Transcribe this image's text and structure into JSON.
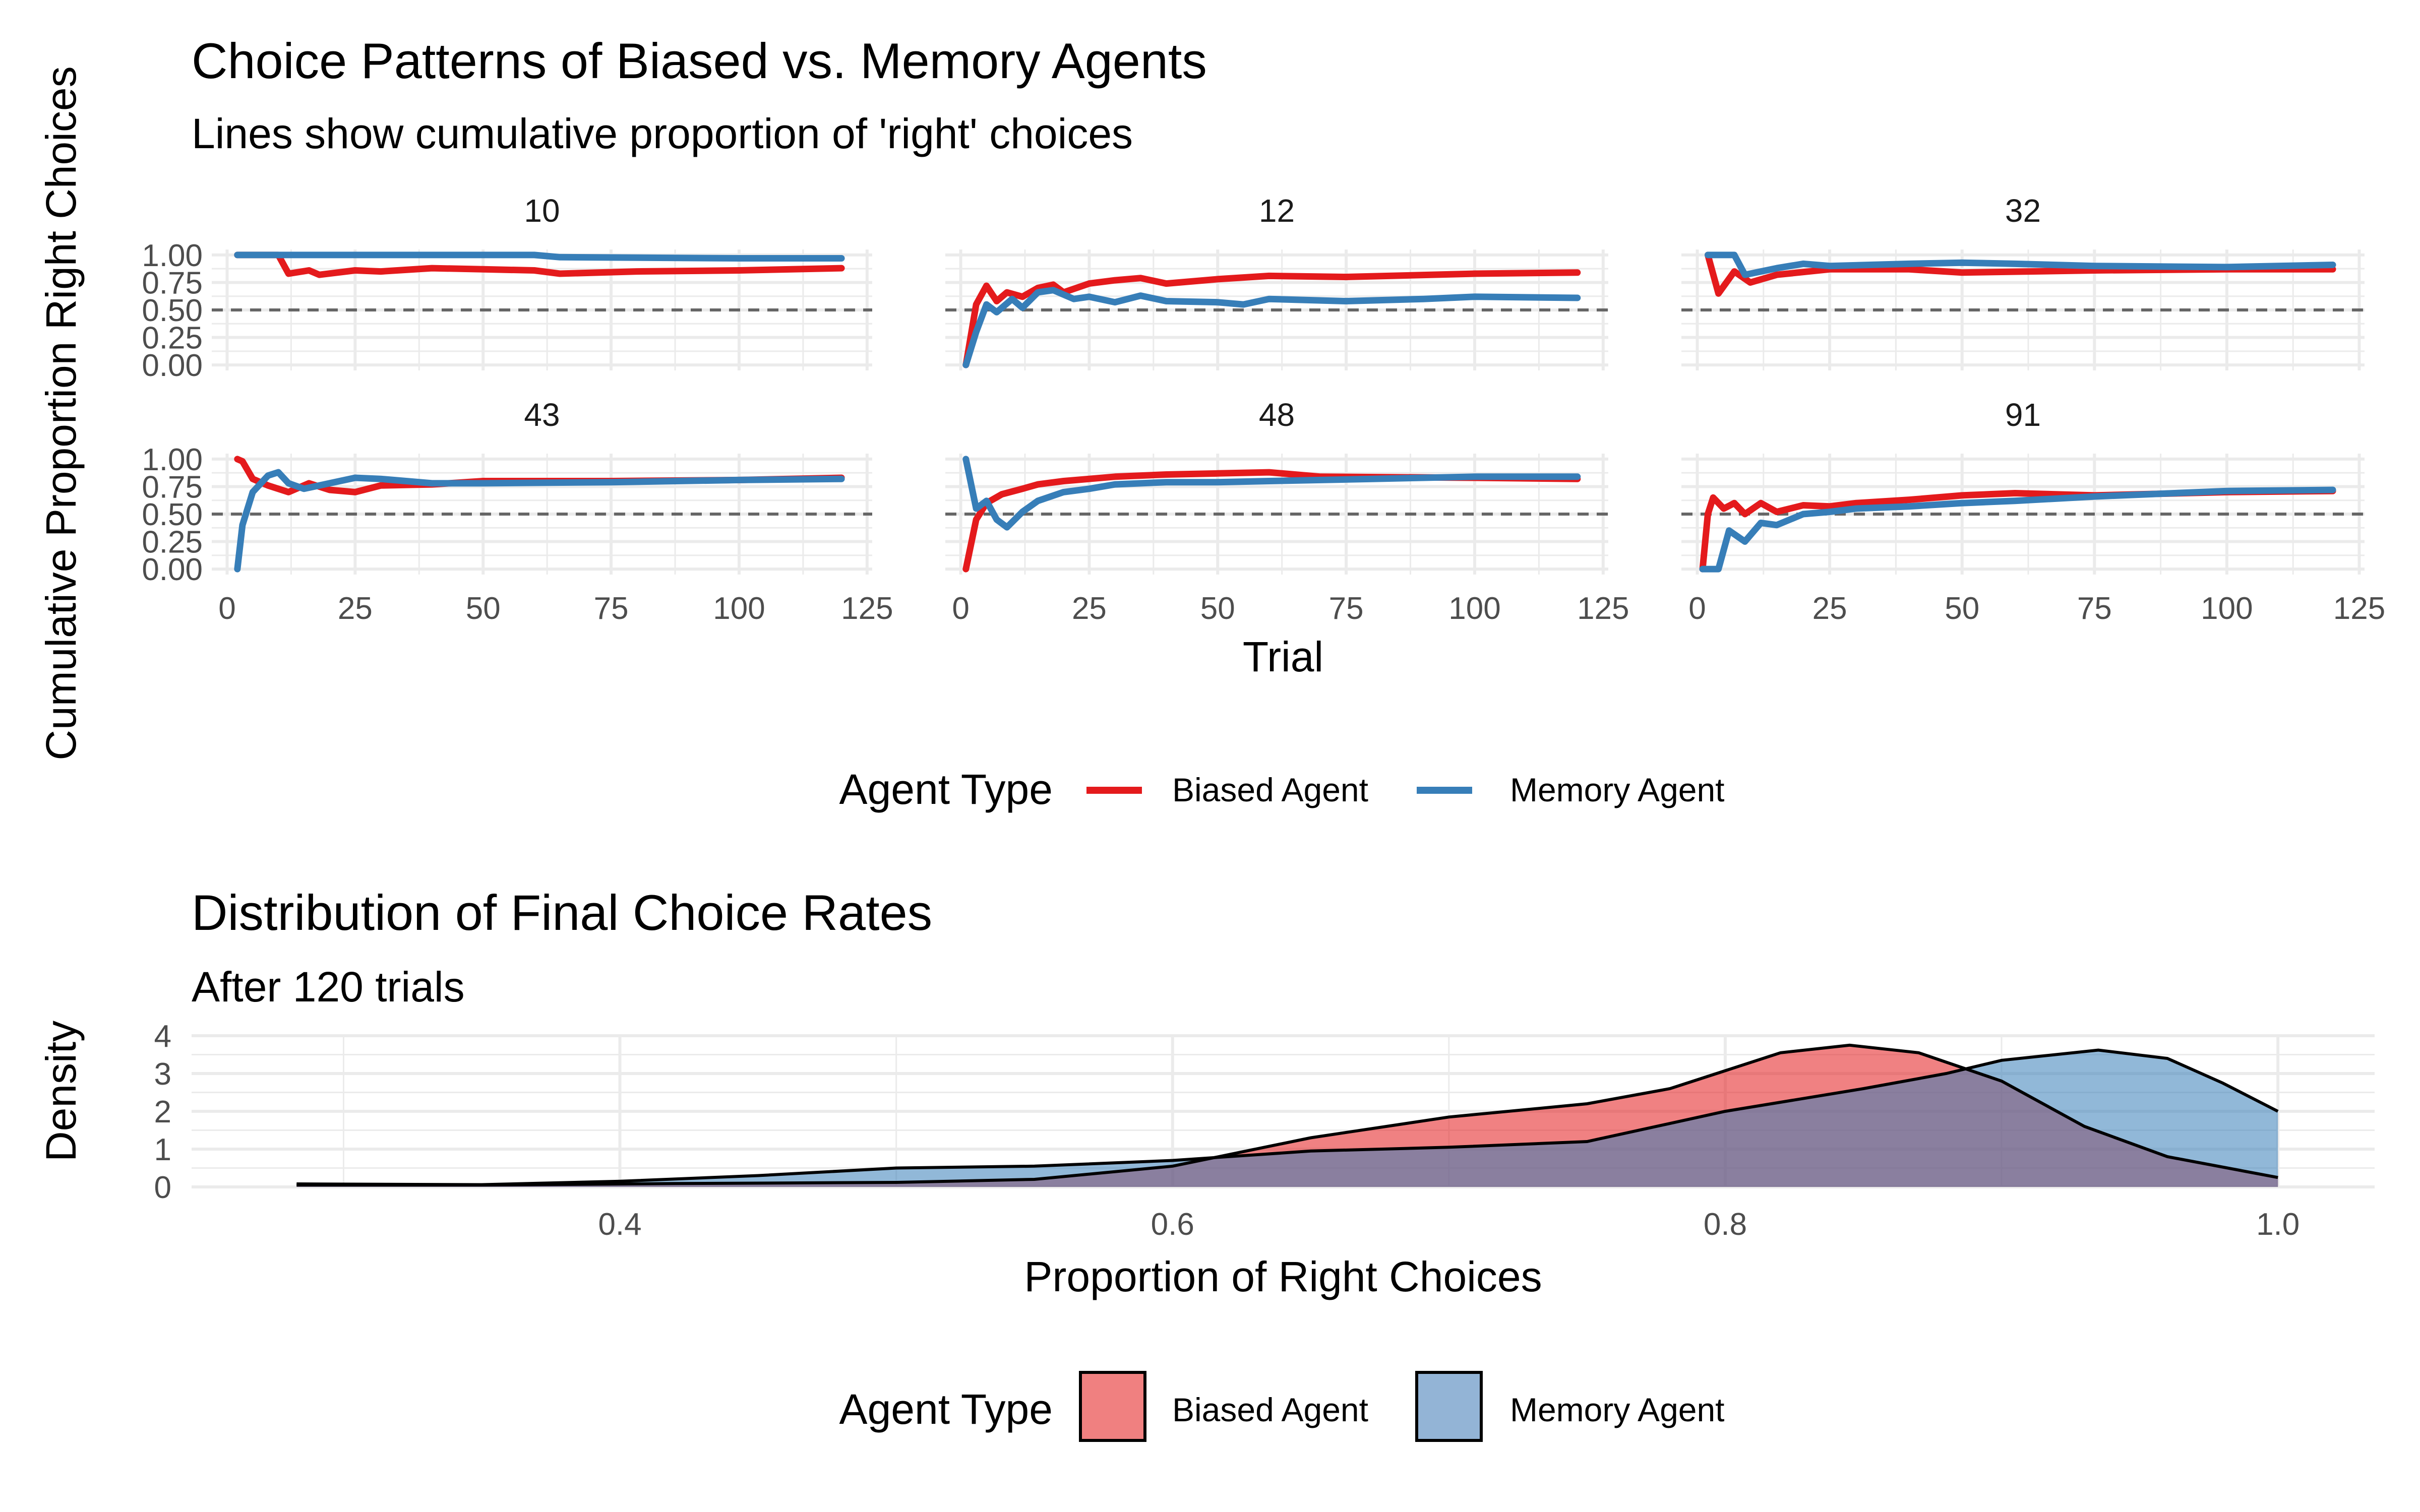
{
  "top_title": "Choice Patterns of Biased vs. Memory Agents",
  "top_subtitle": "Lines show cumulative proportion of 'right' choices",
  "top_xlabel": "Trial",
  "top_ylabel": "Cumulative Proportion Right Choices",
  "top_legend_title": "Agent Type",
  "bottom_title": "Distribution of Final Choice Rates",
  "bottom_subtitle": "After 120 trials",
  "bottom_xlabel": "Proportion of Right Choices",
  "bottom_ylabel": "Density",
  "bottom_legend_title": "Agent Type",
  "colors": {
    "biased": "#e41a1c",
    "memory": "#377eb8",
    "biased_fill": "#f08080",
    "memory_fill": "#93b4d6",
    "overlap_fill": "#8b6a93",
    "reference_line": "#666666",
    "grid": "#ebebeb"
  },
  "chart_data": [
    {
      "type": "line",
      "facets": [
        "10",
        "12",
        "32",
        "43",
        "48",
        "91"
      ],
      "x_ticks": [
        0,
        25,
        50,
        75,
        100,
        125
      ],
      "y_ticks": [
        0.0,
        0.25,
        0.5,
        0.75,
        1.0
      ],
      "y_tick_labels": [
        "0.00",
        "0.25",
        "0.50",
        "0.75",
        "1.00"
      ],
      "xlim": [
        -3,
        126
      ],
      "ylim": [
        -0.05,
        1.05
      ],
      "reference_line": 0.5,
      "series_names": [
        "Biased Agent",
        "Memory Agent"
      ],
      "panels": {
        "10": {
          "Biased Agent": [
            [
              2,
              1.0
            ],
            [
              10,
              1.0
            ],
            [
              12,
              0.83
            ],
            [
              16,
              0.86
            ],
            [
              18,
              0.82
            ],
            [
              25,
              0.86
            ],
            [
              30,
              0.85
            ],
            [
              40,
              0.88
            ],
            [
              50,
              0.87
            ],
            [
              60,
              0.86
            ],
            [
              65,
              0.83
            ],
            [
              80,
              0.85
            ],
            [
              100,
              0.86
            ],
            [
              120,
              0.88
            ]
          ],
          "Memory Agent": [
            [
              2,
              1.0
            ],
            [
              30,
              1.0
            ],
            [
              60,
              1.0
            ],
            [
              65,
              0.98
            ],
            [
              100,
              0.97
            ],
            [
              120,
              0.97
            ]
          ]
        },
        "12": {
          "Biased Agent": [
            [
              1,
              0.0
            ],
            [
              3,
              0.55
            ],
            [
              5,
              0.72
            ],
            [
              7,
              0.58
            ],
            [
              9,
              0.66
            ],
            [
              12,
              0.62
            ],
            [
              15,
              0.7
            ],
            [
              18,
              0.73
            ],
            [
              20,
              0.66
            ],
            [
              25,
              0.74
            ],
            [
              30,
              0.77
            ],
            [
              35,
              0.79
            ],
            [
              40,
              0.74
            ],
            [
              50,
              0.78
            ],
            [
              60,
              0.81
            ],
            [
              75,
              0.8
            ],
            [
              100,
              0.83
            ],
            [
              120,
              0.84
            ]
          ],
          "Memory Agent": [
            [
              1,
              0.0
            ],
            [
              3,
              0.3
            ],
            [
              5,
              0.55
            ],
            [
              7,
              0.48
            ],
            [
              10,
              0.6
            ],
            [
              12,
              0.52
            ],
            [
              15,
              0.66
            ],
            [
              18,
              0.68
            ],
            [
              22,
              0.6
            ],
            [
              25,
              0.62
            ],
            [
              30,
              0.57
            ],
            [
              35,
              0.63
            ],
            [
              40,
              0.58
            ],
            [
              50,
              0.57
            ],
            [
              55,
              0.55
            ],
            [
              60,
              0.6
            ],
            [
              75,
              0.58
            ],
            [
              90,
              0.6
            ],
            [
              100,
              0.62
            ],
            [
              120,
              0.61
            ]
          ]
        },
        "32": {
          "Biased Agent": [
            [
              2,
              1.0
            ],
            [
              4,
              0.65
            ],
            [
              7,
              0.85
            ],
            [
              10,
              0.75
            ],
            [
              15,
              0.82
            ],
            [
              25,
              0.87
            ],
            [
              40,
              0.87
            ],
            [
              50,
              0.84
            ],
            [
              75,
              0.86
            ],
            [
              100,
              0.87
            ],
            [
              120,
              0.87
            ]
          ],
          "Memory Agent": [
            [
              2,
              1.0
            ],
            [
              7,
              1.0
            ],
            [
              9,
              0.82
            ],
            [
              15,
              0.88
            ],
            [
              20,
              0.92
            ],
            [
              25,
              0.9
            ],
            [
              40,
              0.92
            ],
            [
              50,
              0.93
            ],
            [
              60,
              0.92
            ],
            [
              75,
              0.9
            ],
            [
              100,
              0.89
            ],
            [
              120,
              0.91
            ]
          ]
        },
        "43": {
          "Biased Agent": [
            [
              2,
              1.0
            ],
            [
              3,
              0.98
            ],
            [
              5,
              0.82
            ],
            [
              8,
              0.76
            ],
            [
              12,
              0.7
            ],
            [
              16,
              0.78
            ],
            [
              20,
              0.72
            ],
            [
              25,
              0.7
            ],
            [
              30,
              0.76
            ],
            [
              40,
              0.77
            ],
            [
              50,
              0.8
            ],
            [
              75,
              0.8
            ],
            [
              100,
              0.81
            ],
            [
              120,
              0.83
            ]
          ],
          "Memory Agent": [
            [
              2,
              0.0
            ],
            [
              3,
              0.4
            ],
            [
              5,
              0.7
            ],
            [
              8,
              0.85
            ],
            [
              10,
              0.88
            ],
            [
              12,
              0.78
            ],
            [
              15,
              0.73
            ],
            [
              20,
              0.78
            ],
            [
              25,
              0.83
            ],
            [
              30,
              0.82
            ],
            [
              40,
              0.78
            ],
            [
              50,
              0.78
            ],
            [
              75,
              0.79
            ],
            [
              100,
              0.81
            ],
            [
              120,
              0.82
            ]
          ]
        },
        "48": {
          "Biased Agent": [
            [
              1,
              0.0
            ],
            [
              3,
              0.45
            ],
            [
              5,
              0.6
            ],
            [
              8,
              0.68
            ],
            [
              12,
              0.73
            ],
            [
              15,
              0.77
            ],
            [
              20,
              0.8
            ],
            [
              25,
              0.82
            ],
            [
              30,
              0.84
            ],
            [
              40,
              0.86
            ],
            [
              50,
              0.87
            ],
            [
              60,
              0.88
            ],
            [
              70,
              0.84
            ],
            [
              100,
              0.83
            ],
            [
              120,
              0.82
            ]
          ],
          "Memory Agent": [
            [
              1,
              1.0
            ],
            [
              3,
              0.55
            ],
            [
              5,
              0.62
            ],
            [
              7,
              0.45
            ],
            [
              9,
              0.38
            ],
            [
              12,
              0.52
            ],
            [
              15,
              0.62
            ],
            [
              20,
              0.7
            ],
            [
              25,
              0.73
            ],
            [
              30,
              0.77
            ],
            [
              40,
              0.79
            ],
            [
              50,
              0.79
            ],
            [
              60,
              0.8
            ],
            [
              80,
              0.82
            ],
            [
              100,
              0.84
            ],
            [
              120,
              0.84
            ]
          ]
        },
        "91": {
          "Biased Agent": [
            [
              1,
              0.0
            ],
            [
              2,
              0.5
            ],
            [
              3,
              0.65
            ],
            [
              5,
              0.55
            ],
            [
              7,
              0.6
            ],
            [
              9,
              0.5
            ],
            [
              12,
              0.6
            ],
            [
              15,
              0.52
            ],
            [
              20,
              0.58
            ],
            [
              25,
              0.57
            ],
            [
              30,
              0.6
            ],
            [
              40,
              0.63
            ],
            [
              50,
              0.67
            ],
            [
              60,
              0.69
            ],
            [
              75,
              0.67
            ],
            [
              100,
              0.7
            ],
            [
              120,
              0.71
            ]
          ],
          "Memory Agent": [
            [
              1,
              0.0
            ],
            [
              2,
              0.0
            ],
            [
              4,
              0.0
            ],
            [
              6,
              0.35
            ],
            [
              9,
              0.25
            ],
            [
              12,
              0.42
            ],
            [
              15,
              0.4
            ],
            [
              20,
              0.5
            ],
            [
              25,
              0.52
            ],
            [
              30,
              0.55
            ],
            [
              40,
              0.57
            ],
            [
              50,
              0.6
            ],
            [
              60,
              0.62
            ],
            [
              75,
              0.66
            ],
            [
              100,
              0.71
            ],
            [
              120,
              0.72
            ]
          ]
        }
      },
      "legend": [
        "Biased Agent",
        "Memory Agent"
      ]
    },
    {
      "type": "area",
      "x_ticks": [
        0.4,
        0.6,
        0.8,
        1.0
      ],
      "x_tick_labels": [
        "0.4",
        "0.6",
        "0.8",
        "1.0"
      ],
      "y_ticks": [
        0,
        1,
        2,
        3,
        4
      ],
      "xlim": [
        0.245,
        1.035
      ],
      "ylim": [
        0,
        4.0
      ],
      "series_names": [
        "Biased Agent",
        "Memory Agent"
      ],
      "density": {
        "Biased Agent": [
          [
            0.283,
            0.05
          ],
          [
            0.35,
            0.05
          ],
          [
            0.42,
            0.09
          ],
          [
            0.5,
            0.12
          ],
          [
            0.55,
            0.2
          ],
          [
            0.6,
            0.55
          ],
          [
            0.65,
            1.3
          ],
          [
            0.7,
            1.85
          ],
          [
            0.75,
            2.2
          ],
          [
            0.78,
            2.6
          ],
          [
            0.82,
            3.55
          ],
          [
            0.845,
            3.75
          ],
          [
            0.87,
            3.55
          ],
          [
            0.9,
            2.8
          ],
          [
            0.93,
            1.6
          ],
          [
            0.96,
            0.8
          ],
          [
            1.0,
            0.25
          ]
        ],
        "Memory Agent": [
          [
            0.283,
            0.08
          ],
          [
            0.35,
            0.06
          ],
          [
            0.4,
            0.15
          ],
          [
            0.45,
            0.3
          ],
          [
            0.5,
            0.5
          ],
          [
            0.55,
            0.55
          ],
          [
            0.6,
            0.7
          ],
          [
            0.65,
            0.95
          ],
          [
            0.7,
            1.05
          ],
          [
            0.75,
            1.2
          ],
          [
            0.8,
            2.0
          ],
          [
            0.85,
            2.6
          ],
          [
            0.88,
            3.0
          ],
          [
            0.9,
            3.35
          ],
          [
            0.935,
            3.62
          ],
          [
            0.96,
            3.4
          ],
          [
            0.98,
            2.75
          ],
          [
            1.0,
            2.0
          ]
        ]
      },
      "legend": [
        "Biased Agent",
        "Memory Agent"
      ]
    }
  ]
}
